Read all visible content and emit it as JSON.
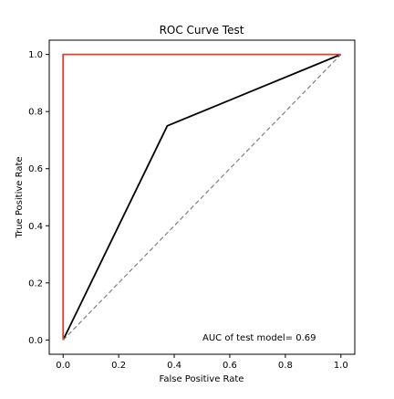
{
  "chart_data": {
    "type": "line",
    "title": "ROC Curve Test",
    "xlabel": "False Positive Rate",
    "ylabel": "True Positive Rate",
    "xlim": [
      -0.05,
      1.05
    ],
    "ylim": [
      -0.05,
      1.05
    ],
    "xticks": [
      0.0,
      0.2,
      0.4,
      0.6,
      0.8,
      1.0
    ],
    "xtick_labels": [
      "0.0",
      "0.2",
      "0.4",
      "0.6",
      "0.8",
      "1.0"
    ],
    "yticks": [
      0.0,
      0.2,
      0.4,
      0.6,
      0.8,
      1.0
    ],
    "ytick_labels": [
      "0.0",
      "0.2",
      "0.4",
      "0.6",
      "0.8",
      "1.0"
    ],
    "grid": false,
    "series": [
      {
        "key": "test-model",
        "color": "#000000",
        "style": "solid",
        "x": [
          0.0,
          0.375,
          1.0
        ],
        "y": [
          0.0,
          0.75,
          1.0
        ]
      },
      {
        "key": "perfect",
        "color": "#e8392b",
        "style": "solid",
        "x": [
          0.0,
          0.0,
          1.0
        ],
        "y": [
          0.0,
          1.0,
          1.0
        ]
      },
      {
        "key": "random",
        "color": "#808080",
        "style": "dashed",
        "x": [
          0.0,
          1.0
        ],
        "y": [
          0.0,
          1.0
        ]
      }
    ],
    "annotation": "AUC of test model= 0.69"
  }
}
